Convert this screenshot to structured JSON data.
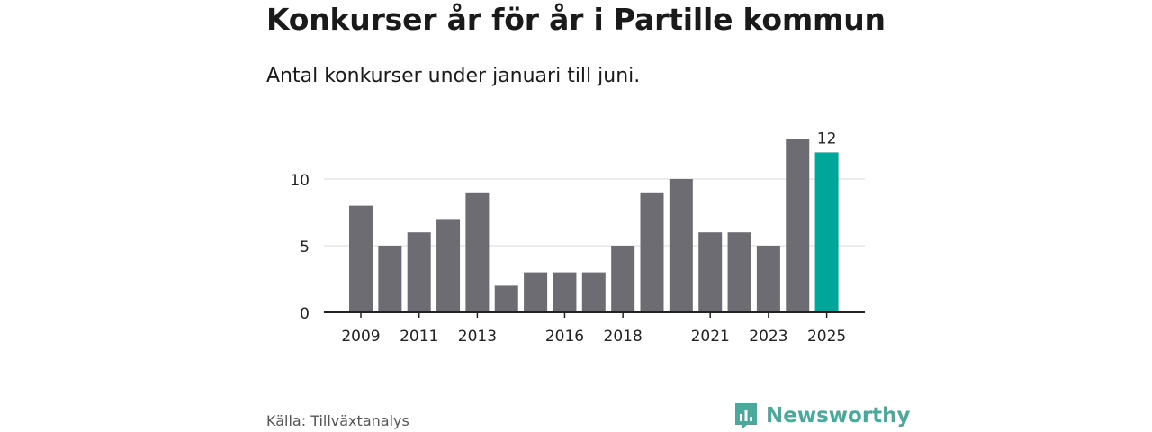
{
  "title": "Konkurser år för år i Partille kommun",
  "subtitle": "Antal konkurser under januari till juni.",
  "source": "Källa: Tillväxtanalys",
  "brand": {
    "name": "Newsworthy",
    "logo_icon": "newsworthy-logo-icon"
  },
  "colors": {
    "bar": "#6d6c72",
    "highlight": "#00a69a",
    "grid": "#d9d9d9",
    "axis": "#222222",
    "brand": "#4aa99b"
  },
  "chart_data": {
    "type": "bar",
    "categories": [
      "2009",
      "2010",
      "2011",
      "2012",
      "2013",
      "2014",
      "2015",
      "2016",
      "2017",
      "2018",
      "2019",
      "2020",
      "2021",
      "2022",
      "2023",
      "2024",
      "2025"
    ],
    "values": [
      8,
      5,
      6,
      7,
      9,
      2,
      3,
      3,
      3,
      5,
      9,
      10,
      6,
      6,
      5,
      13,
      12
    ],
    "x_tick_labels": [
      "2009",
      "",
      "2011",
      "",
      "2013",
      "",
      "",
      "2016",
      "",
      "2018",
      "",
      "",
      "2021",
      "",
      "2023",
      "",
      "2025"
    ],
    "y_ticks": [
      0,
      5,
      10
    ],
    "ylim": [
      0,
      13
    ],
    "highlight_index": 16,
    "highlight_label": "12",
    "grid": true,
    "xlabel": "",
    "ylabel": ""
  }
}
